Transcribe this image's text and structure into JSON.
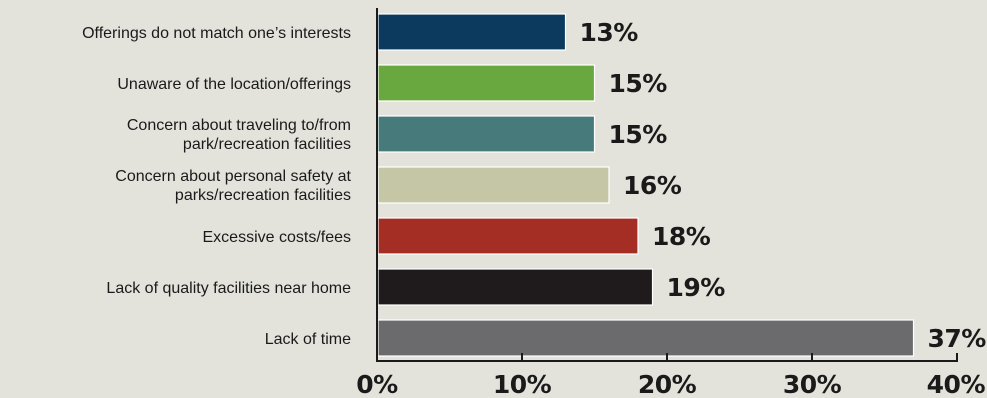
{
  "chart_data": {
    "type": "bar",
    "orientation": "horizontal",
    "title": "",
    "xlabel": "",
    "ylabel": "",
    "categories": [
      "Offerings do not match one’s interests",
      "Unaware of the location/offerings",
      "Concern about traveling to/from park/recreation facilities",
      "Concern about personal safety at parks/recreation facilities",
      "Excessive costs/fees",
      "Lack of quality facilities near home",
      "Lack of time"
    ],
    "category_lines": [
      [
        "Offerings do not match one’s interests"
      ],
      [
        "Unaware of the location/offerings"
      ],
      [
        "Concern about traveling to/from",
        "park/recreation facilities"
      ],
      [
        "Concern about personal safety at",
        "parks/recreation facilities"
      ],
      [
        "Excessive costs/fees"
      ],
      [
        "Lack of quality facilities near home"
      ],
      [
        "Lack of time"
      ]
    ],
    "values": [
      13,
      15,
      15,
      16,
      18,
      19,
      37
    ],
    "value_labels": [
      "13%",
      "15%",
      "15%",
      "16%",
      "18%",
      "19%",
      "37%"
    ],
    "colors": [
      "#0b3a5e",
      "#69a83e",
      "#467a7b",
      "#c5c6a6",
      "#a42d24",
      "#1f1b1c",
      "#6b6b6e"
    ],
    "xlim": [
      0,
      40
    ],
    "ticks": [
      0,
      10,
      20,
      30,
      40
    ],
    "tick_labels": [
      "0%",
      "10%",
      "20%",
      "30%",
      "40%"
    ],
    "grid": false
  }
}
